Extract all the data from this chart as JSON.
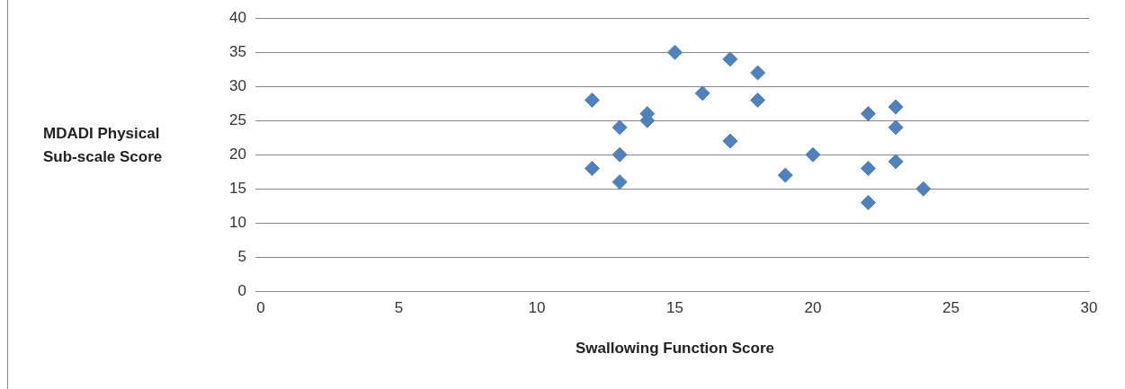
{
  "chart_data": {
    "type": "scatter",
    "xlabel": "Swallowing Function Score",
    "ylabel": "MDADI Physical Sub-scale Score",
    "xlim": [
      0,
      30
    ],
    "xticks": [
      0,
      5,
      10,
      15,
      20,
      25,
      30
    ],
    "ylim": [
      0,
      40
    ],
    "yticks": [
      0,
      5,
      10,
      15,
      20,
      25,
      30,
      35,
      40
    ],
    "grid": "y",
    "marker": "diamond",
    "series": [
      {
        "color": "#4f81bd",
        "x": [
          12,
          12,
          13,
          13,
          13,
          14,
          14,
          15,
          16,
          17,
          17,
          18,
          18,
          19,
          20,
          22,
          22,
          22,
          23,
          23,
          23,
          24
        ],
        "values": [
          28,
          18,
          24,
          20,
          16,
          26,
          25,
          35,
          29,
          34,
          22,
          32,
          28,
          17,
          20,
          26,
          18,
          13,
          27,
          24,
          19,
          15
        ]
      }
    ]
  }
}
